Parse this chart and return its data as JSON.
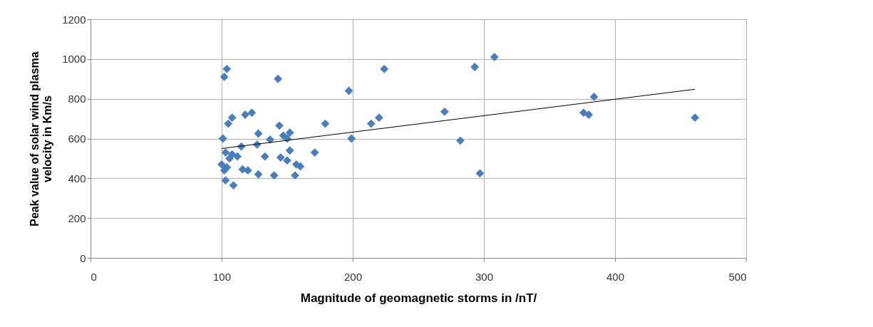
{
  "chart_data": {
    "type": "scatter",
    "xlabel": "Magnitude of geomagnetic storms in /nT/",
    "ylabel": "Peak value of solar wind plasma velocity in Km/s",
    "xlim": [
      0,
      500
    ],
    "xticks": [
      0,
      100,
      200,
      300,
      400,
      500
    ],
    "ylim": [
      0,
      1200
    ],
    "yticks": [
      0,
      200,
      400,
      600,
      800,
      1000,
      1200
    ],
    "grid": true,
    "series": [
      {
        "color": "#4a7ebb",
        "marker": "diamond",
        "x": [
          104,
          102,
          143,
          197,
          224,
          293,
          308,
          384,
          376,
          380,
          461,
          270,
          282,
          297,
          220,
          214,
          199,
          179,
          171,
          108,
          105,
          118,
          123,
          144,
          152,
          147,
          150,
          128,
          137,
          101,
          103,
          108,
          112,
          106,
          115,
          127,
          133,
          145,
          152,
          150,
          157,
          160,
          100,
          102,
          104,
          120,
          128,
          140,
          156,
          103,
          109,
          116
        ],
        "values": [
          950,
          910,
          900,
          840,
          950,
          960,
          1010,
          810,
          730,
          720,
          705,
          735,
          590,
          425,
          705,
          675,
          600,
          675,
          530,
          705,
          675,
          720,
          730,
          665,
          630,
          615,
          600,
          625,
          595,
          600,
          530,
          520,
          510,
          500,
          560,
          570,
          510,
          505,
          540,
          490,
          470,
          460,
          470,
          440,
          455,
          440,
          420,
          415,
          415,
          390,
          365,
          445
        ]
      },
      {
        "type": "line",
        "marker": "none",
        "color": "#000000",
        "x": [
          100,
          461
        ],
        "values": [
          550,
          848
        ]
      }
    ]
  }
}
